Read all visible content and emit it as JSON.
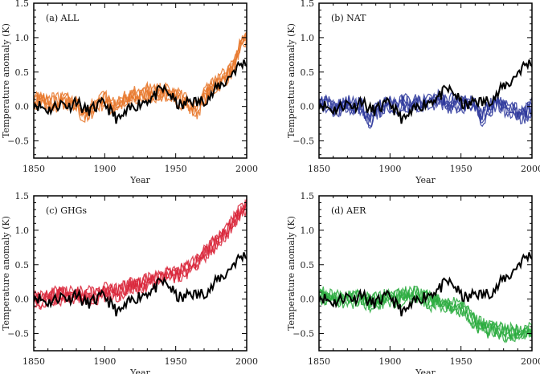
{
  "chart_data": [
    {
      "type": "line",
      "title": "(a) ALL",
      "xlabel": "Year",
      "ylabel": "Temperature anomaly (K)",
      "xlim": [
        1850,
        2000
      ],
      "ylim": [
        -0.75,
        1.5
      ],
      "xticks": [
        1850,
        1900,
        1950,
        2000
      ],
      "yticks": [
        -0.5,
        0.0,
        0.5,
        1.0,
        1.5
      ],
      "ensemble_color": "#e8772a",
      "ensemble_mean": [
        0.05,
        0.1,
        0.05,
        0.05,
        0.1,
        0.05,
        0.05,
        -0.15,
        -0.05,
        0.05,
        0.1,
        0.0,
        0.05,
        0.1,
        0.15,
        0.15,
        0.2,
        0.2,
        0.2,
        0.2,
        0.15,
        0.1,
        0.0,
        -0.05,
        0.15,
        0.25,
        0.35,
        0.45,
        0.55,
        0.85,
        1.0
      ]
    },
    {
      "type": "line",
      "title": "(b) NAT",
      "xlabel": "Year",
      "ylabel": "Temperature anomaly (K)",
      "xlim": [
        1850,
        2000
      ],
      "ylim": [
        -0.75,
        1.5
      ],
      "xticks": [
        1850,
        1900,
        1950,
        2000
      ],
      "yticks": [
        -0.5,
        0.0,
        0.5,
        1.0,
        1.5
      ],
      "ensemble_color": "#2f3a9c",
      "ensemble_mean": [
        0.05,
        0.05,
        0.0,
        0.0,
        0.05,
        0.0,
        0.0,
        -0.2,
        -0.05,
        0.0,
        0.05,
        0.0,
        0.05,
        0.05,
        0.05,
        0.05,
        0.1,
        0.1,
        0.05,
        0.05,
        0.05,
        0.05,
        0.0,
        -0.15,
        0.0,
        0.05,
        0.0,
        -0.05,
        -0.1,
        -0.1,
        0.0
      ]
    },
    {
      "type": "line",
      "title": "(c) GHGs",
      "xlabel": "Year",
      "ylabel": "Temperature anomaly (K)",
      "xlim": [
        1850,
        2000
      ],
      "ylim": [
        -0.75,
        1.5
      ],
      "xticks": [
        1850,
        1900,
        1950,
        2000
      ],
      "yticks": [
        -0.5,
        0.0,
        0.5,
        1.0,
        1.5
      ],
      "ensemble_color": "#d9263a",
      "ensemble_mean": [
        0.0,
        0.0,
        0.0,
        0.05,
        0.05,
        0.05,
        0.05,
        0.05,
        0.05,
        0.05,
        0.1,
        0.1,
        0.1,
        0.15,
        0.2,
        0.2,
        0.25,
        0.3,
        0.3,
        0.35,
        0.35,
        0.4,
        0.45,
        0.55,
        0.65,
        0.75,
        0.85,
        0.95,
        1.1,
        1.25,
        1.35
      ]
    },
    {
      "type": "line",
      "title": "(d) AER",
      "xlabel": "Year",
      "ylabel": "Temperature anomaly (K)",
      "xlim": [
        1850,
        2000
      ],
      "ylim": [
        -0.75,
        1.5
      ],
      "xticks": [
        1850,
        1900,
        1950,
        2000
      ],
      "yticks": [
        -0.5,
        0.0,
        0.5,
        1.0,
        1.5
      ],
      "ensemble_color": "#2aab3e",
      "ensemble_mean": [
        0.05,
        0.05,
        0.0,
        0.0,
        0.0,
        0.0,
        0.0,
        -0.05,
        -0.05,
        0.0,
        0.0,
        0.0,
        0.05,
        0.05,
        0.05,
        0.0,
        -0.05,
        -0.05,
        -0.1,
        -0.1,
        -0.15,
        -0.2,
        -0.35,
        -0.4,
        -0.45,
        -0.45,
        -0.5,
        -0.5,
        -0.5,
        -0.5,
        -0.45
      ]
    }
  ],
  "series_years": [
    1850,
    1855,
    1860,
    1865,
    1870,
    1875,
    1880,
    1885,
    1890,
    1895,
    1900,
    1905,
    1910,
    1915,
    1920,
    1925,
    1930,
    1935,
    1940,
    1945,
    1950,
    1955,
    1960,
    1965,
    1970,
    1975,
    1980,
    1985,
    1990,
    1995,
    2000
  ],
  "observed": {
    "color": "#000000",
    "values": [
      0.05,
      0.0,
      -0.05,
      0.0,
      0.05,
      0.0,
      0.1,
      -0.05,
      -0.05,
      0.0,
      0.05,
      -0.1,
      -0.2,
      -0.1,
      0.0,
      0.05,
      0.1,
      0.15,
      0.25,
      0.2,
      0.05,
      0.0,
      0.1,
      0.05,
      0.1,
      0.15,
      0.3,
      0.35,
      0.5,
      0.6,
      0.65
    ]
  }
}
